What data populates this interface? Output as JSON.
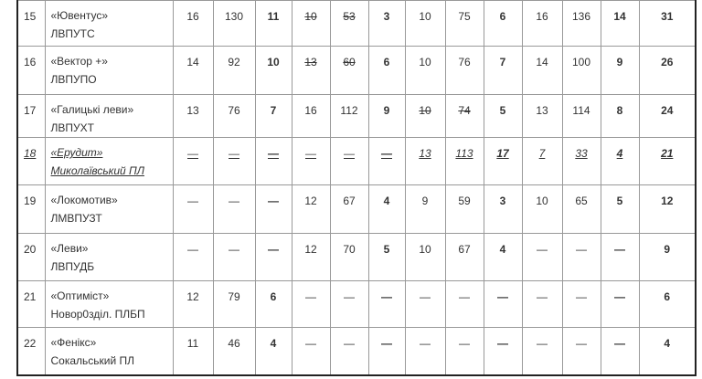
{
  "table": {
    "rows": [
      {
        "rank": "15",
        "name": "«Ювентус»",
        "city": "ЛВПУТС",
        "cells": [
          "16",
          "130",
          "11",
          "10",
          "53",
          "3",
          "10",
          "75",
          "6",
          "16",
          "136",
          "14"
        ],
        "total": "31",
        "struck": [
          3,
          4
        ]
      },
      {
        "rank": "16",
        "name": "«Вектор +»",
        "city": "ЛВПУПО",
        "cells": [
          "14",
          "92",
          "10",
          "13",
          "60",
          "6",
          "10",
          "76",
          "7",
          "14",
          "100",
          "9"
        ],
        "total": "26",
        "struck": [
          3,
          4
        ]
      },
      {
        "rank": "17",
        "name": "«Галицькі леви»",
        "city": "ЛВПУХТ",
        "cells": [
          "13",
          "76",
          "7",
          "16",
          "112",
          "9",
          "10",
          "74",
          "5",
          "13",
          "114",
          "8"
        ],
        "total": "24",
        "struck": [
          6,
          7
        ]
      },
      {
        "rank": "18",
        "name": "«Ерудит»",
        "city": "Миколаївський ПЛ",
        "cells": [
          "—",
          "—",
          "—",
          "—",
          "—",
          "—",
          "13",
          "113",
          "17",
          "7",
          "33",
          "4"
        ],
        "total": "21",
        "style": "italic-underline"
      },
      {
        "rank": "19",
        "name": "«Локомотив»",
        "city": "ЛМВПУЗТ",
        "cells": [
          "—",
          "—",
          "—",
          "12",
          "67",
          "4",
          "9",
          "59",
          "3",
          "10",
          "65",
          "5"
        ],
        "total": "12"
      },
      {
        "rank": "20",
        "name": "«Леви»",
        "city": "ЛВПУДБ",
        "cells": [
          "—",
          "—",
          "—",
          "12",
          "70",
          "5",
          "10",
          "67",
          "4",
          "—",
          "—",
          "—"
        ],
        "total": "9"
      },
      {
        "rank": "21",
        "name": "«Оптиміст»",
        "city": "Новоp0зділ. ПЛБП",
        "cells": [
          "12",
          "79",
          "6",
          "—",
          "—",
          "—",
          "—",
          "—",
          "—",
          "—",
          "—",
          "—"
        ],
        "total": "6"
      },
      {
        "rank": "22",
        "name": "«Фенікс»",
        "city": "Сокальський ПЛ",
        "cells": [
          "11",
          "46",
          "4",
          "—",
          "—",
          "—",
          "—",
          "—",
          "—",
          "—",
          "—",
          "—"
        ],
        "total": "4"
      }
    ]
  }
}
